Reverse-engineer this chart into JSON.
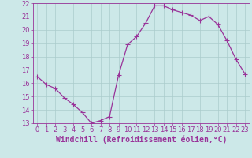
{
  "x": [
    0,
    1,
    2,
    3,
    4,
    5,
    6,
    7,
    8,
    9,
    10,
    11,
    12,
    13,
    14,
    15,
    16,
    17,
    18,
    19,
    20,
    21,
    22,
    23
  ],
  "y": [
    16.5,
    15.9,
    15.6,
    14.9,
    14.4,
    13.8,
    13.0,
    13.2,
    13.5,
    16.6,
    18.9,
    19.5,
    20.5,
    21.8,
    21.8,
    21.5,
    21.3,
    21.1,
    20.7,
    21.0,
    20.4,
    19.2,
    17.8,
    16.7
  ],
  "line_color": "#993399",
  "marker": "+",
  "marker_size": 4,
  "bg_color": "#cce8e8",
  "grid_color": "#aacccc",
  "xlabel": "Windchill (Refroidissement éolien,°C)",
  "xlim": [
    -0.5,
    23.5
  ],
  "ylim": [
    13,
    22
  ],
  "xticks": [
    0,
    1,
    2,
    3,
    4,
    5,
    6,
    7,
    8,
    9,
    10,
    11,
    12,
    13,
    14,
    15,
    16,
    17,
    18,
    19,
    20,
    21,
    22,
    23
  ],
  "yticks": [
    13,
    14,
    15,
    16,
    17,
    18,
    19,
    20,
    21,
    22
  ],
  "tick_color": "#993399",
  "label_color": "#993399",
  "xlabel_fontsize": 7,
  "tick_fontsize": 6,
  "line_width": 0.9
}
